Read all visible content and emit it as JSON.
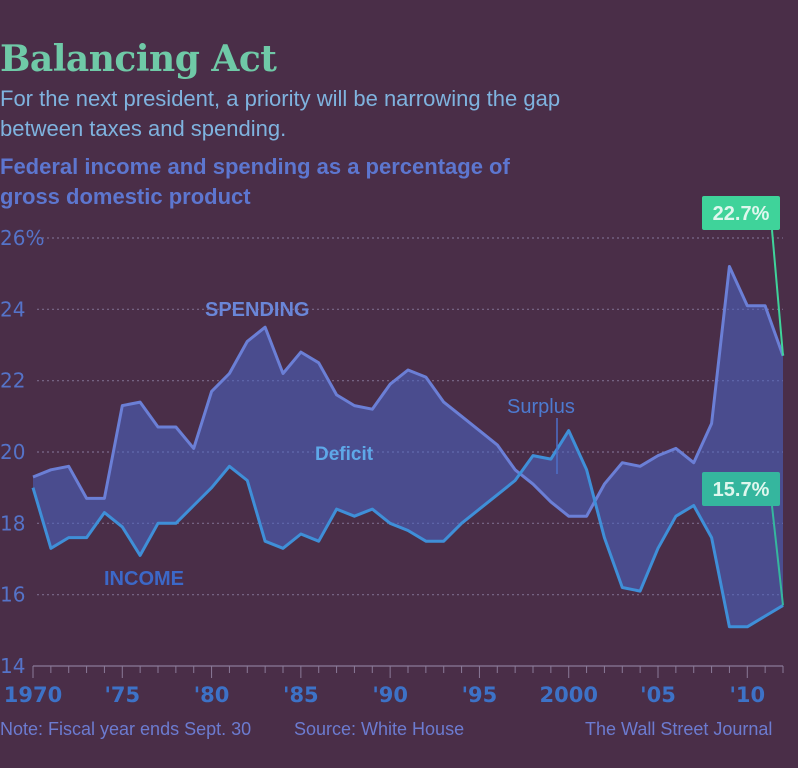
{
  "title": "Balancing Act",
  "subtitle_line1": "For the next president, a priority will be narrowing the gap",
  "subtitle_line2": "between taxes and spending.",
  "header_line1": "Federal income and spending as a percentage of",
  "header_line2": "gross domestic product",
  "note": "Note: Fiscal year ends Sept. 30",
  "source": "Source: White House",
  "credit": "The Wall Street Journal",
  "colors": {
    "background": "#4a2e48",
    "spending_line": "#6b7fd6",
    "income_line": "#3f8fd8",
    "gap_fill": "#4a66c9",
    "label_spending_bg": "#3fd39a",
    "label_income_bg": "#35b69e"
  },
  "chart_data": {
    "type": "line",
    "ylim": [
      14,
      26
    ],
    "yticks": [
      "26%",
      "24",
      "22",
      "20",
      "18",
      "16",
      "14"
    ],
    "xticks": [
      "1970",
      "'75",
      "'80",
      "'85",
      "'90",
      "'95",
      "2000",
      "'05",
      "'10"
    ],
    "x": [
      1970,
      1971,
      1972,
      1973,
      1974,
      1975,
      1976,
      1977,
      1978,
      1979,
      1980,
      1981,
      1982,
      1983,
      1984,
      1985,
      1986,
      1987,
      1988,
      1989,
      1990,
      1991,
      1992,
      1993,
      1994,
      1995,
      1996,
      1997,
      1998,
      1999,
      2000,
      2001,
      2002,
      2003,
      2004,
      2005,
      2006,
      2007,
      2008,
      2009,
      2010,
      2011,
      2012
    ],
    "series": [
      {
        "name": "SPENDING",
        "values": [
          19.3,
          19.5,
          19.6,
          18.7,
          18.7,
          21.3,
          21.4,
          20.7,
          20.7,
          20.1,
          21.7,
          22.2,
          23.1,
          23.5,
          22.2,
          22.8,
          22.5,
          21.6,
          21.3,
          21.2,
          21.9,
          22.3,
          22.1,
          21.4,
          21.0,
          20.6,
          20.2,
          19.5,
          19.1,
          18.6,
          18.2,
          18.2,
          19.1,
          19.7,
          19.6,
          19.9,
          20.1,
          19.7,
          20.8,
          25.2,
          24.1,
          24.1,
          22.7
        ],
        "end_label": "22.7%"
      },
      {
        "name": "INCOME",
        "values": [
          19.0,
          17.3,
          17.6,
          17.6,
          18.3,
          17.9,
          17.1,
          18.0,
          18.0,
          18.5,
          19.0,
          19.6,
          19.2,
          17.5,
          17.3,
          17.7,
          17.5,
          18.4,
          18.2,
          18.4,
          18.0,
          17.8,
          17.5,
          17.5,
          18.0,
          18.4,
          18.8,
          19.2,
          19.9,
          19.8,
          20.6,
          19.5,
          17.6,
          16.2,
          16.1,
          17.3,
          18.2,
          18.5,
          17.6,
          15.1,
          15.1,
          15.4,
          15.7
        ],
        "end_label": "15.7%"
      }
    ],
    "annotations": [
      "Deficit",
      "Surplus"
    ]
  }
}
